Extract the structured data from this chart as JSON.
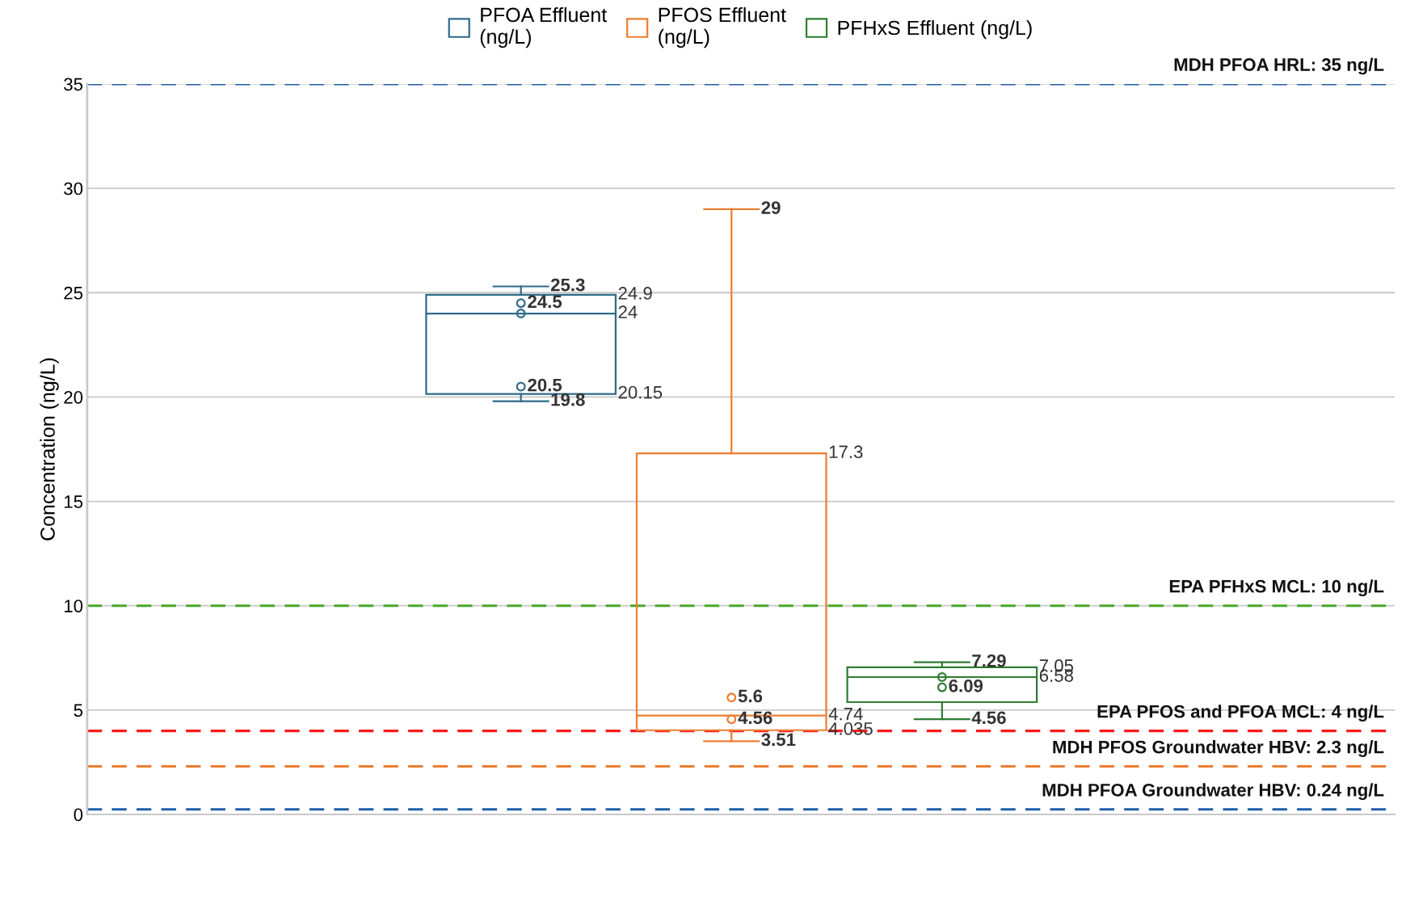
{
  "chart_data": {
    "type": "box",
    "ylabel": "Concentration (ng/L)",
    "categories": [
      null
    ],
    "ylim": [
      0,
      35
    ],
    "yticks": [
      0,
      5,
      10,
      15,
      20,
      25,
      30,
      35
    ],
    "grid": "y",
    "legend": "top",
    "series": [
      {
        "name": "PFOA Effluent\n(ng/L)",
        "color": "#2e6b8a",
        "boxes": [
          {
            "low": 19.8,
            "q1": 20.15,
            "median": 24,
            "q3": 24.9,
            "high": 25.3,
            "outliers": [
              24.5,
              24,
              20.5
            ]
          }
        ],
        "value_labels": [
          [
            "19.8",
            "20.15",
            "24",
            "24.9",
            "25.3",
            "24.5",
            null,
            "20.5"
          ]
        ]
      },
      {
        "name": "PFOS Effluent\n(ng/L)",
        "color": "#ed7d31",
        "boxes": [
          {
            "low": 3.51,
            "q1": 4.035,
            "median": 4.74,
            "q3": 17.3,
            "high": 29,
            "outliers": [
              5.6,
              4.56
            ]
          }
        ],
        "value_labels": [
          [
            "3.51",
            "4.035",
            "4.74",
            "17.3",
            "29",
            "5.6",
            "4.56"
          ]
        ]
      },
      {
        "name": "PFHxS Effluent (ng/L)",
        "color": "#2e7d32",
        "boxes": [
          {
            "low": 4.56,
            "q1": 5.38,
            "median": 6.58,
            "q3": 7.05,
            "high": 7.29,
            "outliers": [
              6.58,
              6.09
            ]
          }
        ],
        "value_labels": [
          [
            "4.56",
            null,
            "6.58",
            "7.05",
            "7.29",
            null,
            "6.09"
          ]
        ]
      }
    ],
    "ref_lines": [
      {
        "axis": "y",
        "value": 35,
        "label": "MDH PFOA HRL: 35 ng/L",
        "color": "#1f5fa8",
        "line_style": "dashed"
      },
      {
        "axis": "y",
        "value": 10,
        "label": "EPA PFHxS MCL: 10 ng/L",
        "color": "#4aa82a",
        "line_style": "dashed"
      },
      {
        "axis": "y",
        "value": 4,
        "label": "EPA PFOS and PFOA MCL: 4 ng/L",
        "color": "#ff1a1a",
        "line_style": "dashed"
      },
      {
        "axis": "y",
        "value": 2.3,
        "label": "MDH PFOS Groundwater HBV: 2.3 ng/L",
        "color": "#ed7d31",
        "line_style": "dashed"
      },
      {
        "axis": "y",
        "value": 0.24,
        "label": "MDH PFOA Groundwater HBV: 0.24 ng/L",
        "color": "#1f5fa8",
        "line_style": "dashed"
      }
    ]
  }
}
